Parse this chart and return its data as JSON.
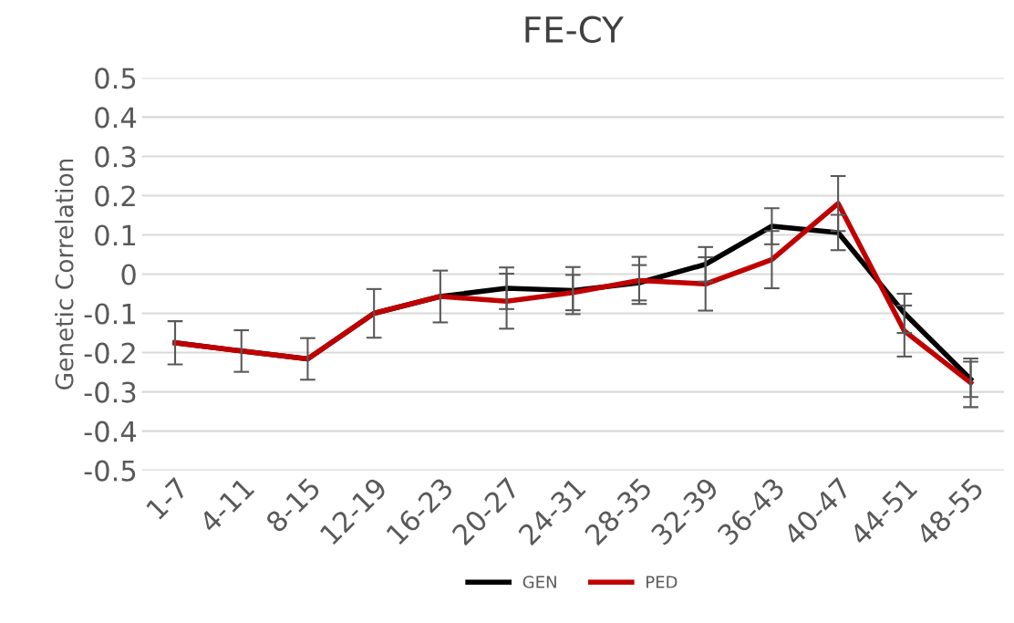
{
  "chart_data": {
    "type": "line",
    "title": "FE-CY",
    "ylabel": "Genetic Correlation",
    "categories": [
      "1-7",
      "4-11",
      "8-15",
      "12-19",
      "16-23",
      "20-27",
      "24-31",
      "28-35",
      "32-39",
      "36-43",
      "40-47",
      "44-51",
      "48-55"
    ],
    "series": [
      {
        "name": "GEN",
        "color": "#000000",
        "values": [
          -0.175,
          -0.196,
          -0.216,
          -0.1,
          -0.057,
          -0.036,
          -0.042,
          -0.022,
          0.025,
          0.122,
          0.106,
          -0.1,
          -0.268
        ],
        "errors": [
          0.055,
          0.053,
          0.053,
          0.062,
          0.066,
          0.053,
          0.06,
          0.045,
          0.044,
          0.046,
          0.045,
          0.05,
          0.045
        ]
      },
      {
        "name": "PED",
        "color": "#c00000",
        "values": [
          -0.175,
          -0.196,
          -0.216,
          -0.1,
          -0.057,
          -0.069,
          -0.047,
          -0.016,
          -0.025,
          0.037,
          0.18,
          -0.145,
          -0.277
        ],
        "errors": [
          0.055,
          0.053,
          0.053,
          0.062,
          0.066,
          0.07,
          0.045,
          0.06,
          0.068,
          0.073,
          0.07,
          0.065,
          0.062
        ]
      }
    ],
    "ylim": [
      -0.5,
      0.5
    ],
    "yticks": [
      -0.5,
      -0.4,
      -0.3,
      -0.2,
      -0.1,
      0,
      0.1,
      0.2,
      0.3,
      0.4,
      0.5
    ],
    "grid": "y",
    "legend": "bottom",
    "marker": "none",
    "line_style": "solid"
  }
}
